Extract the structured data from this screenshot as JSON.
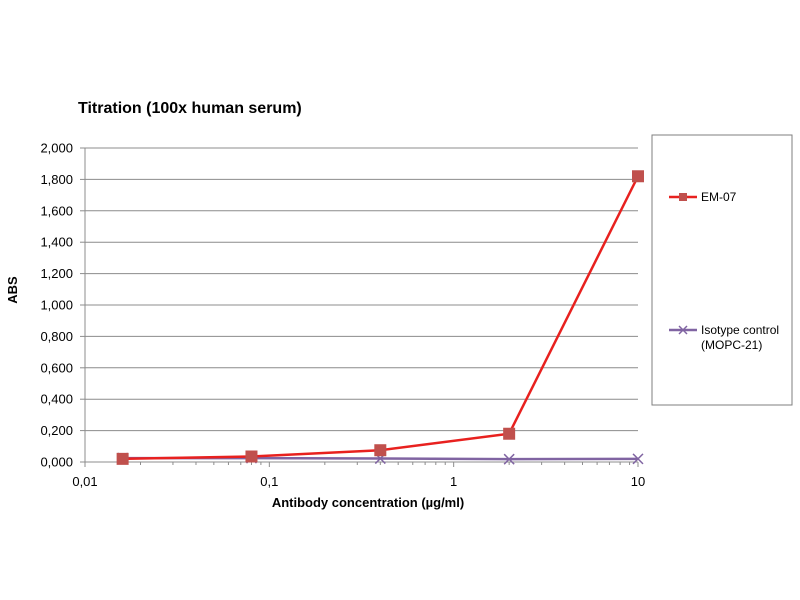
{
  "chart_data": {
    "type": "line",
    "title": "Titration (100x human serum)",
    "xlabel": "Antibody concentration (µg/ml)",
    "ylabel": "ABS",
    "x_scale": "log",
    "xlim": [
      0.01,
      10
    ],
    "ylim": [
      0,
      2.0
    ],
    "x_ticks": [
      0.01,
      0.1,
      1,
      10
    ],
    "x_tick_labels": [
      "0,01",
      "0,1",
      "1",
      "10"
    ],
    "y_ticks": [
      0,
      0.2,
      0.4,
      0.6,
      0.8,
      1.0,
      1.2,
      1.4,
      1.6,
      1.8,
      2.0
    ],
    "y_tick_labels": [
      "0,000",
      "0,200",
      "0,400",
      "0,600",
      "0,800",
      "1,000",
      "1,200",
      "1,400",
      "1,600",
      "1,800",
      "2,000"
    ],
    "grid": "horizontal",
    "legend_position": "right",
    "series": [
      {
        "name": "EM-07",
        "color": "#e8211f",
        "marker": "square",
        "marker_color": "#c0504d",
        "x": [
          0.016,
          0.08,
          0.4,
          2,
          10
        ],
        "y": [
          0.02,
          0.035,
          0.075,
          0.18,
          1.82
        ]
      },
      {
        "name_lines": [
          "Isotype control",
          "(MOPC-21)"
        ],
        "color": "#8064a2",
        "marker": "x",
        "x": [
          0.016,
          0.08,
          0.4,
          2,
          10
        ],
        "y": [
          0.025,
          0.025,
          0.022,
          0.018,
          0.02
        ]
      }
    ]
  }
}
